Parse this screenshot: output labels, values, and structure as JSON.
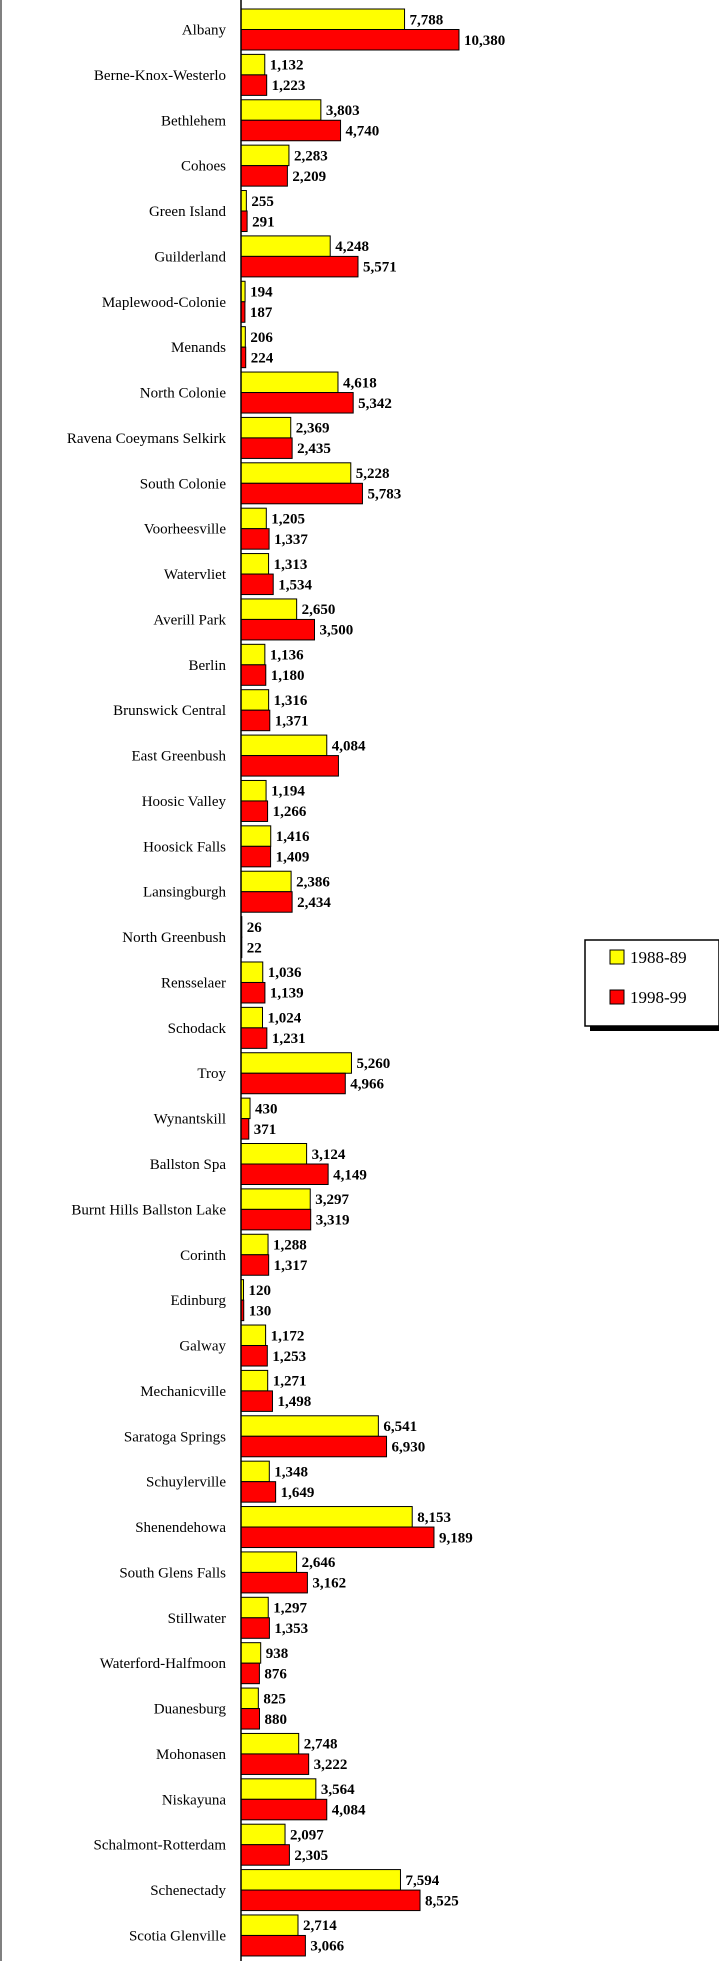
{
  "chart_data": {
    "type": "bar",
    "orientation": "horizontal",
    "title": "",
    "xlabel": "",
    "ylabel": "",
    "legend": {
      "placement": "right"
    },
    "categories": [
      "Albany",
      "Berne-Knox-Westerlo",
      "Bethlehem",
      "Cohoes",
      "Green Island",
      "Guilderland",
      "Maplewood-Colonie",
      "Menands",
      "North Colonie",
      "Ravena Coeymans Selkirk",
      "South Colonie",
      "Voorheesville",
      "Watervliet",
      "Averill Park",
      "Berlin",
      "Brunswick Central",
      "East Greenbush",
      "Hoosic Valley",
      "Hoosick Falls",
      "Lansingburgh",
      "North Greenbush",
      "Rensselaer",
      "Schodack",
      "Troy",
      "Wynantskill",
      "Ballston Spa",
      "Burnt Hills Ballston Lake",
      "Corinth",
      "Edinburg",
      "Galway",
      "Mechanicville",
      "Saratoga Springs",
      "Schuylerville",
      "Shenendehowa",
      "South Glens Falls",
      "Stillwater",
      "Waterford-Halfmoon",
      "Duanesburg",
      "Mohonasen",
      "Niskayuna",
      "Schalmont-Rotterdam",
      "Schenectady",
      "Scotia Glenville"
    ],
    "series": [
      {
        "name": "1988-89",
        "color": "#ffff00",
        "values": [
          7788,
          1132,
          3803,
          2283,
          255,
          4248,
          194,
          206,
          4618,
          2369,
          5228,
          1205,
          1313,
          2650,
          1136,
          1316,
          4084,
          1194,
          1416,
          2386,
          26,
          1036,
          1024,
          5260,
          430,
          3124,
          3297,
          1288,
          120,
          1172,
          1271,
          6541,
          1348,
          8153,
          2646,
          1297,
          938,
          825,
          2748,
          3564,
          2097,
          7594,
          2714
        ],
        "labels": [
          "7,788",
          "1,132",
          "3,803",
          "2,283",
          "255",
          "4,248",
          "194",
          "206",
          "4,618",
          "2,369",
          "5,228",
          "1,205",
          "1,313",
          "2,650",
          "1,136",
          "1,316",
          "4,084",
          "1,194",
          "1,416",
          "2,386",
          "26",
          "1,036",
          "1,024",
          "5,260",
          "430",
          "3,124",
          "3,297",
          "1,288",
          "120",
          "1,172",
          "1,271",
          "6,541",
          "1,348",
          "8,153",
          "2,646",
          "1,297",
          "938",
          "825",
          "2,748",
          "3,564",
          "2,097",
          "7,594",
          "2,714"
        ]
      },
      {
        "name": "1998-99",
        "color": "#ff0000",
        "values": [
          10380,
          1223,
          4740,
          2209,
          291,
          5571,
          187,
          224,
          5342,
          2435,
          5783,
          1337,
          1534,
          3500,
          1180,
          1371,
          4640,
          1266,
          1409,
          2434,
          22,
          1139,
          1231,
          4966,
          371,
          4149,
          3319,
          1317,
          130,
          1253,
          1498,
          6930,
          1649,
          9189,
          3162,
          1353,
          876,
          880,
          3222,
          4084,
          2305,
          8525,
          3066
        ],
        "labels": [
          "10,380",
          "1,223",
          "4,740",
          "2,209",
          "291",
          "5,571",
          "187",
          "224",
          "5,342",
          "2,435",
          "5,783",
          "1,337",
          "1,534",
          "3,500",
          "1,180",
          "1,371",
          "",
          "1,266",
          "1,409",
          "2,434",
          "22",
          "1,139",
          "1,231",
          "4,966",
          "371",
          "4,149",
          "3,319",
          "1,317",
          "130",
          "1,253",
          "1,498",
          "6,930",
          "1,649",
          "9,189",
          "3,162",
          "1,353",
          "876",
          "880",
          "3,222",
          "4,084",
          "2,305",
          "8,525",
          "3,066"
        ]
      }
    ]
  }
}
